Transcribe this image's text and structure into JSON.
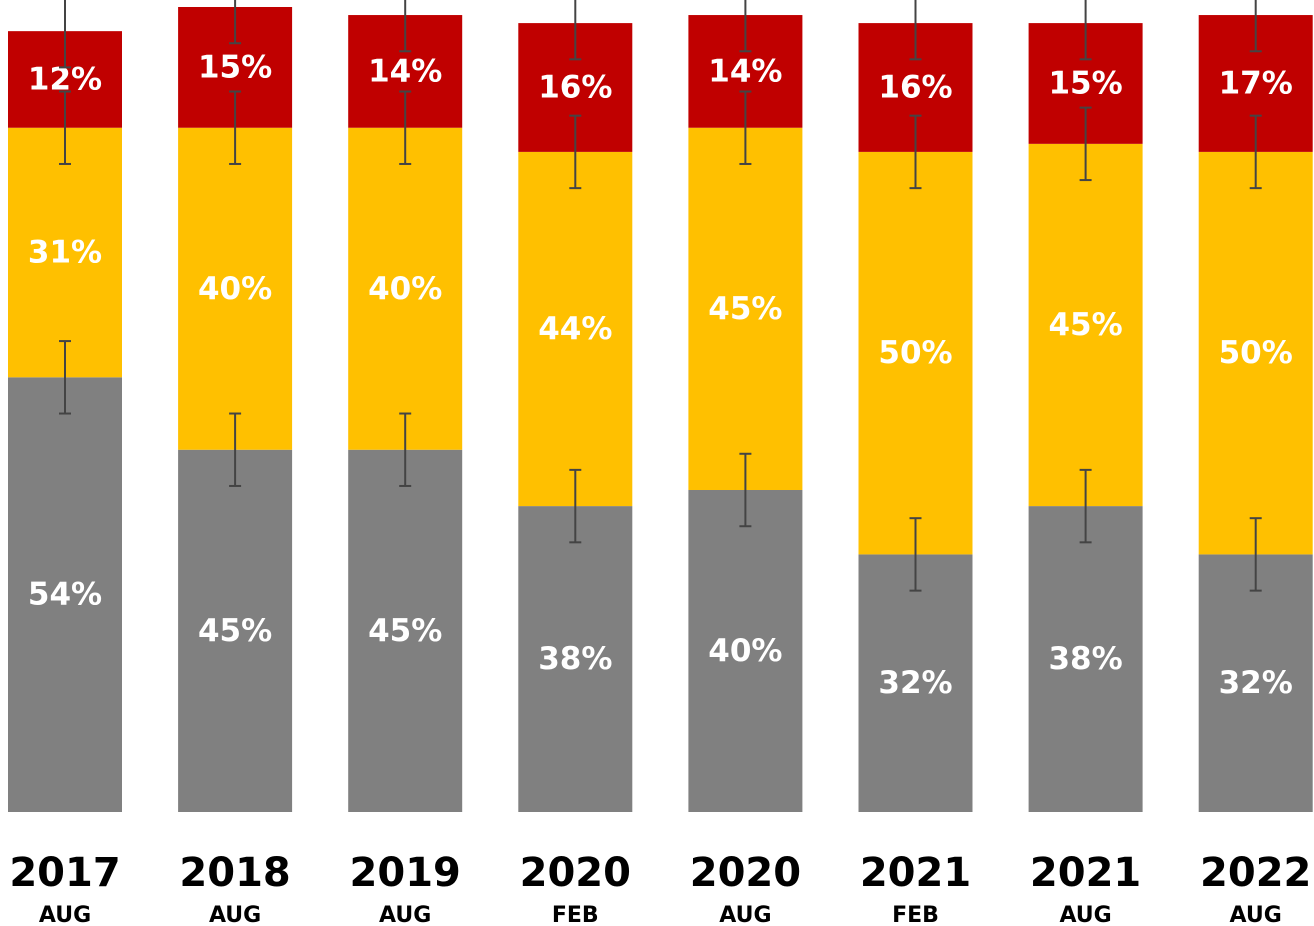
{
  "chart_data": {
    "type": "bar",
    "stacked": true,
    "categories": [
      {
        "year": "2017",
        "month": "AUG"
      },
      {
        "year": "2018",
        "month": "AUG"
      },
      {
        "year": "2019",
        "month": "AUG"
      },
      {
        "year": "2020",
        "month": "FEB"
      },
      {
        "year": "2020",
        "month": "AUG"
      },
      {
        "year": "2021",
        "month": "FEB"
      },
      {
        "year": "2021",
        "month": "AUG"
      },
      {
        "year": "2022",
        "month": "AUG"
      }
    ],
    "series": [
      {
        "color": "#808080",
        "values": [
          54,
          45,
          45,
          38,
          40,
          32,
          38,
          32
        ],
        "labels": [
          "54%",
          "45%",
          "45%",
          "38%",
          "40%",
          "32%",
          "38%",
          "32%"
        ]
      },
      {
        "color": "#FFC000",
        "values": [
          31,
          40,
          40,
          44,
          45,
          50,
          45,
          50
        ],
        "labels": [
          "31%",
          "40%",
          "40%",
          "44%",
          "45%",
          "50%",
          "45%",
          "50%"
        ]
      },
      {
        "color": "#C00000",
        "values": [
          12,
          15,
          14,
          16,
          14,
          16,
          15,
          17
        ],
        "labels": [
          "12%",
          "15%",
          "14%",
          "16%",
          "14%",
          "16%",
          "15%",
          "17%"
        ]
      }
    ],
    "error_bars": true,
    "error_margin": 4.5,
    "ylim": [
      0,
      100
    ],
    "grid": false,
    "legend": "none",
    "xlabel": "",
    "ylabel": ""
  }
}
